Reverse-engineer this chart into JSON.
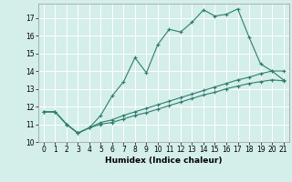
{
  "xlabel": "Humidex (Indice chaleur)",
  "background_color": "#d4eeea",
  "grid_color": "#ffffff",
  "line_color": "#2e7d6e",
  "xlim": [
    -0.5,
    21.5
  ],
  "ylim": [
    10,
    17.8
  ],
  "yticks": [
    10,
    11,
    12,
    13,
    14,
    15,
    16,
    17
  ],
  "xticks": [
    0,
    1,
    2,
    3,
    4,
    5,
    6,
    7,
    8,
    9,
    10,
    11,
    12,
    13,
    14,
    15,
    16,
    17,
    18,
    19,
    20,
    21
  ],
  "line1_x": [
    0,
    1,
    2,
    3,
    4,
    5,
    6,
    7,
    8,
    9,
    10,
    11,
    12,
    13,
    14,
    15,
    16,
    17,
    18,
    19,
    20,
    21
  ],
  "line1_y": [
    11.7,
    11.7,
    11.0,
    10.5,
    10.8,
    11.5,
    12.6,
    13.4,
    14.75,
    13.9,
    15.5,
    16.35,
    16.2,
    16.75,
    17.45,
    17.1,
    17.2,
    17.5,
    15.9,
    14.4,
    14.0,
    13.5
  ],
  "line2_x": [
    0,
    1,
    2,
    3,
    4,
    5,
    6,
    7,
    8,
    9,
    10,
    11,
    12,
    13,
    14,
    15,
    16,
    17,
    18,
    19,
    20,
    21
  ],
  "line2_y": [
    11.7,
    11.7,
    11.0,
    10.5,
    10.8,
    11.1,
    11.25,
    11.5,
    11.7,
    11.9,
    12.1,
    12.3,
    12.5,
    12.7,
    12.9,
    13.1,
    13.3,
    13.5,
    13.65,
    13.85,
    14.0,
    14.0
  ],
  "line3_x": [
    0,
    1,
    2,
    3,
    4,
    5,
    6,
    7,
    8,
    9,
    10,
    11,
    12,
    13,
    14,
    15,
    16,
    17,
    18,
    19,
    20,
    21
  ],
  "line3_y": [
    11.7,
    11.7,
    11.0,
    10.5,
    10.8,
    11.0,
    11.1,
    11.3,
    11.5,
    11.65,
    11.85,
    12.05,
    12.25,
    12.45,
    12.65,
    12.8,
    13.0,
    13.15,
    13.3,
    13.4,
    13.5,
    13.45
  ]
}
